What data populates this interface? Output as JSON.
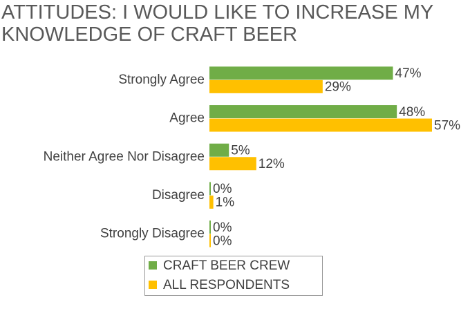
{
  "chart_data": {
    "type": "hbar",
    "title": "ATTITUDES: I WOULD LIKE TO INCREASE MY KNOWLEDGE OF CRAFT BEER",
    "categories": [
      "Strongly Agree",
      "Agree",
      "Neither Agree Nor Disagree",
      "Disagree",
      "Strongly Disagree"
    ],
    "series": [
      {
        "name": "CRAFT BEER CREW",
        "color": "#70ad47",
        "values": [
          47,
          48,
          5,
          0,
          0
        ],
        "value_labels": [
          "47%",
          "48%",
          "5%",
          "0%",
          "0%"
        ],
        "label_colors": [
          "#1a1aa6",
          "#c00000",
          "#c00000",
          "#404040",
          "#404040"
        ]
      },
      {
        "name": "ALL RESPONDENTS",
        "color": "#ffc000",
        "values": [
          29,
          57,
          12,
          1,
          0
        ],
        "value_labels": [
          "29%",
          "57%",
          "12%",
          "1%",
          "0%"
        ],
        "label_colors": [
          "#404040",
          "#404040",
          "#404040",
          "#404040",
          "#404040"
        ]
      }
    ],
    "legend": "bottom"
  }
}
